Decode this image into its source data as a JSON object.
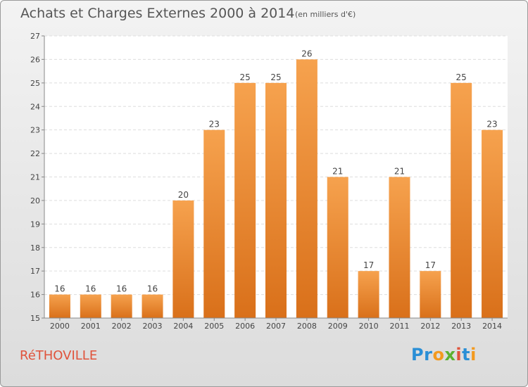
{
  "commune": "RéTHOVILLE",
  "logo_text": "Proxiti",
  "colors": {
    "bar_top": "#f6a24e",
    "bar_bottom": "#d9701a",
    "commune": "#e0533b"
  },
  "chart_data": {
    "type": "bar",
    "title": "Achats et Charges Externes 2000 à 2014",
    "subtitle": "(en milliers d'€)",
    "categories": [
      "2000",
      "2001",
      "2002",
      "2003",
      "2004",
      "2005",
      "2006",
      "2007",
      "2008",
      "2009",
      "2010",
      "2011",
      "2012",
      "2013",
      "2014"
    ],
    "values": [
      16,
      16,
      16,
      16,
      20,
      23,
      25,
      25,
      26,
      21,
      17,
      21,
      17,
      25,
      23
    ],
    "ylim": [
      15,
      27
    ],
    "yticks": [
      15,
      16,
      17,
      18,
      19,
      20,
      21,
      22,
      23,
      24,
      25,
      26,
      27
    ],
    "grid": true,
    "xlabel": "",
    "ylabel": ""
  }
}
